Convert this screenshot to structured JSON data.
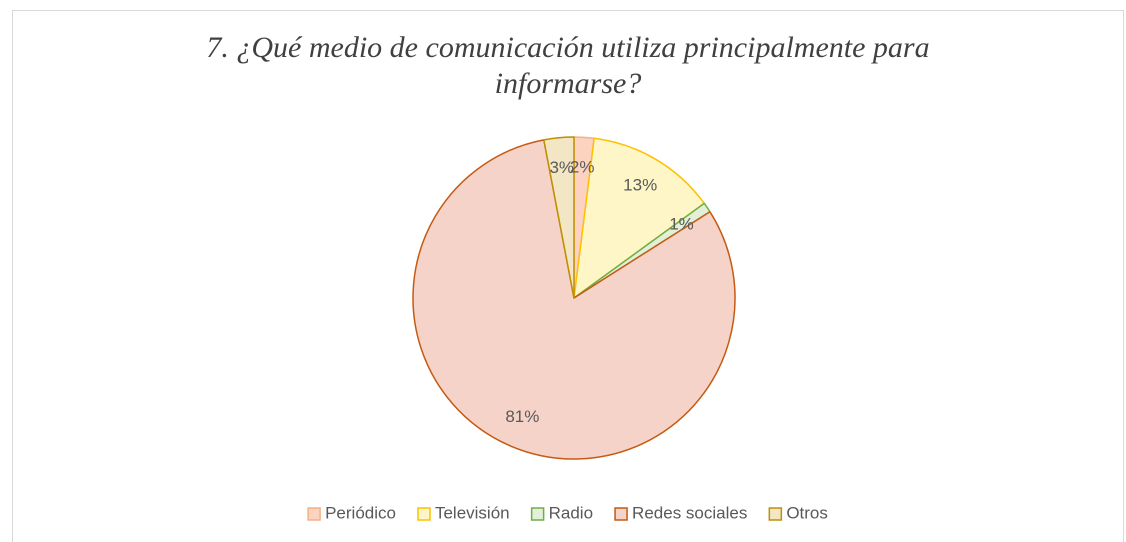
{
  "chart_data": {
    "type": "pie",
    "title_lines": [
      "7. ¿Qué medio de comunicación utiliza principalmente para",
      "informarse?"
    ],
    "categories": [
      "Periódico",
      "Televisión",
      "Radio",
      "Redes sociales",
      "Otros"
    ],
    "values": [
      2,
      13,
      1,
      81,
      3
    ],
    "value_labels": [
      "2%",
      "13%",
      "1%",
      "81%",
      "3%"
    ],
    "colors": [
      "#fbd3c0",
      "#fff6c8",
      "#e2f0d9",
      "#f6d3c8",
      "#f3e6c4"
    ],
    "edge_colors": [
      "#f4b183",
      "#ffc000",
      "#70ad47",
      "#c55a11",
      "#bf9000"
    ],
    "legend": "bottom"
  }
}
